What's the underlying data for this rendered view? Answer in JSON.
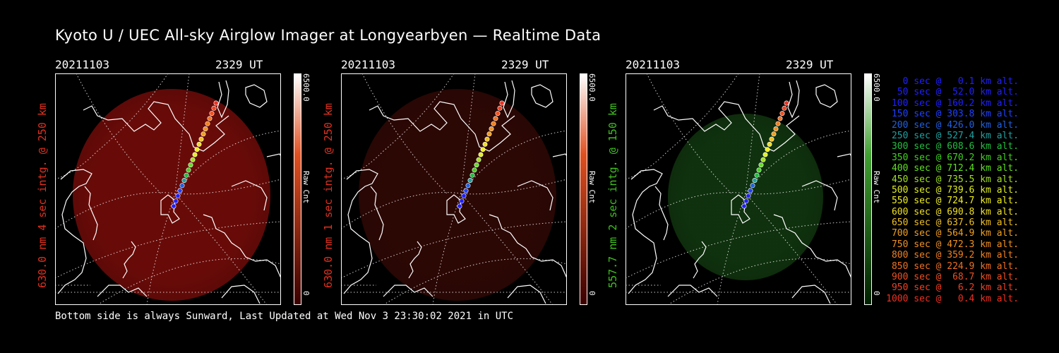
{
  "title": "Kyoto U / UEC All-sky Airglow Imager at Longyearbyen — Realtime Data",
  "footer": "Bottom side is always Sunward, Last Updated at Wed Nov  3 23:30:02 2021 in UTC",
  "panels": [
    {
      "date": "20211103",
      "time": "2329 UT",
      "ylabel": "630.0 nm 4 sec intg. @ 250 km",
      "label_color": "#e0301e",
      "glow_color": "#7a0d0a",
      "glow_opacity": 0.85,
      "cbar_max": "6500.0",
      "cbar_unit": "Raw Cnt",
      "cbar_min": "0",
      "cbar_top": "#ffffff",
      "cbar_mid": "#e05020",
      "cbar_bottom": "#3a0000"
    },
    {
      "date": "20211103",
      "time": "2329 UT",
      "ylabel": "630.0 nm 1 sec intg. @ 250 km",
      "label_color": "#e0301e",
      "glow_color": "#3a0a06",
      "glow_opacity": 0.75,
      "cbar_max": "6500.0",
      "cbar_unit": "Raw Cnt",
      "cbar_min": "0",
      "cbar_top": "#ffffff",
      "cbar_mid": "#e05020",
      "cbar_bottom": "#3a0000"
    },
    {
      "date": "20211103",
      "time": "2329 UT",
      "ylabel": "557.7 nm 2 sec intg. @ 150 km",
      "label_color": "#40c020",
      "glow_color": "#123a10",
      "glow_opacity": 0.85,
      "cbar_max": "6500.0",
      "cbar_unit": "Raw Cnt",
      "cbar_min": "0",
      "cbar_top": "#ffffff",
      "cbar_mid": "#40a030",
      "cbar_bottom": "#002000"
    }
  ],
  "trajectory_legend": [
    {
      "text": "0 sec @   0.1 km alt.",
      "color": "#2020ff"
    },
    {
      "text": "50 sec @  52.0 km alt.",
      "color": "#2020ff"
    },
    {
      "text": "100 sec @ 160.2 km alt.",
      "color": "#2020ff"
    },
    {
      "text": "150 sec @ 303.8 km alt.",
      "color": "#2040ff"
    },
    {
      "text": "200 sec @ 426.0 km alt.",
      "color": "#2060e0"
    },
    {
      "text": "250 sec @ 527.4 km alt.",
      "color": "#20a0a0"
    },
    {
      "text": "300 sec @ 608.6 km alt.",
      "color": "#20c040"
    },
    {
      "text": "350 sec @ 670.2 km alt.",
      "color": "#40d020"
    },
    {
      "text": "400 sec @ 712.4 km alt.",
      "color": "#60e020"
    },
    {
      "text": "450 sec @ 735.5 km alt.",
      "color": "#a0e020"
    },
    {
      "text": "500 sec @ 739.6 km alt.",
      "color": "#e0f020"
    },
    {
      "text": "550 sec @ 724.7 km alt.",
      "color": "#f0f020"
    },
    {
      "text": "600 sec @ 690.8 km alt.",
      "color": "#f0e020"
    },
    {
      "text": "650 sec @ 637.6 km alt.",
      "color": "#f0c020"
    },
    {
      "text": "700 sec @ 564.9 km alt.",
      "color": "#f0a020"
    },
    {
      "text": "750 sec @ 472.3 km alt.",
      "color": "#f09020"
    },
    {
      "text": "800 sec @ 359.2 km alt.",
      "color": "#f08020"
    },
    {
      "text": "850 sec @ 224.9 km alt.",
      "color": "#f07020"
    },
    {
      "text": "900 sec @  68.7 km alt.",
      "color": "#f05020"
    },
    {
      "text": "950 sec @   6.2 km alt.",
      "color": "#f04020"
    },
    {
      "text": "1000 sec @   0.4 km alt.",
      "color": "#f03020"
    }
  ]
}
